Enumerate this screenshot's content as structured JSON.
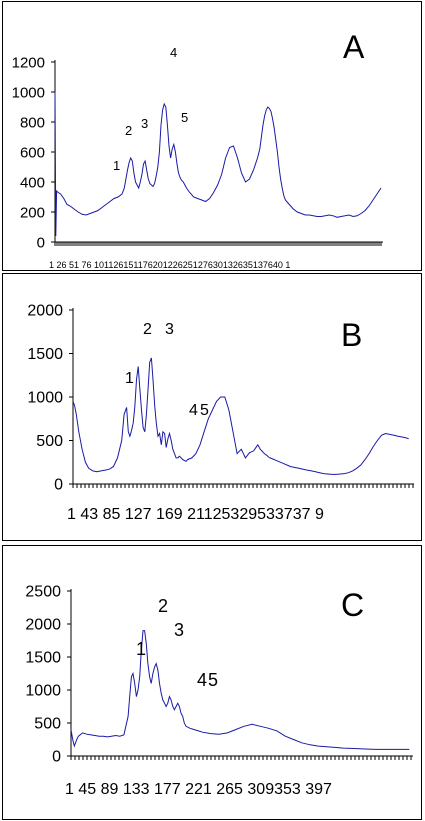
{
  "chart_data": [
    {
      "type": "line",
      "panel_label": "A",
      "ylim": [
        0,
        1200
      ],
      "y_ticks": [
        "0",
        "200",
        "400",
        "600",
        "800",
        "1000",
        "1200"
      ],
      "x_tick_labels": [
        "1",
        "26",
        "51",
        "76",
        "101",
        "126",
        "151",
        "176",
        "201",
        "226",
        "251",
        "276",
        "301",
        "326",
        "351",
        "376",
        "401"
      ],
      "x_tick_text": "1    26  51   76  10112615117620122625127630132635137640 1",
      "peak_labels": [
        "1",
        "2",
        "3",
        "4",
        "5"
      ],
      "series": [
        {
          "x": [
            1,
            2,
            3,
            5,
            8,
            12,
            16,
            20,
            25,
            30,
            35,
            40,
            45,
            50,
            55,
            60,
            65,
            70,
            75,
            80,
            85,
            88,
            90,
            92,
            94,
            96,
            98,
            100,
            102,
            104,
            106,
            108,
            110,
            112,
            114,
            116,
            118,
            120,
            122,
            124,
            126,
            128,
            130,
            132,
            134,
            136,
            138,
            140,
            142,
            144,
            146,
            148,
            150,
            152,
            154,
            156,
            158,
            160,
            162,
            164,
            166,
            170,
            175,
            180,
            185,
            190,
            195,
            200,
            205,
            210,
            215,
            220,
            225,
            230,
            235,
            240,
            245,
            250,
            255,
            258,
            260,
            262,
            264,
            266,
            268,
            270,
            272,
            274,
            276,
            278,
            280,
            282,
            284,
            286,
            288,
            290,
            295,
            300,
            305,
            310,
            315,
            320,
            325,
            330,
            335,
            340,
            345,
            350,
            355,
            360,
            365,
            370,
            375,
            380,
            385,
            390,
            395,
            400,
            405,
            410
          ],
          "values": [
            1000,
            40,
            340,
            330,
            320,
            290,
            250,
            240,
            220,
            200,
            185,
            180,
            190,
            200,
            210,
            230,
            250,
            270,
            290,
            300,
            320,
            360,
            420,
            480,
            530,
            560,
            540,
            460,
            400,
            380,
            360,
            400,
            450,
            520,
            540,
            480,
            420,
            390,
            380,
            370,
            390,
            440,
            500,
            600,
            780,
            880,
            920,
            900,
            780,
            640,
            560,
            620,
            650,
            600,
            520,
            460,
            430,
            410,
            400,
            380,
            360,
            330,
            300,
            290,
            280,
            270,
            290,
            330,
            380,
            450,
            560,
            630,
            640,
            560,
            460,
            400,
            420,
            480,
            560,
            620,
            700,
            780,
            840,
            880,
            900,
            890,
            870,
            820,
            760,
            680,
            600,
            500,
            420,
            360,
            310,
            280,
            250,
            220,
            200,
            190,
            180,
            180,
            175,
            170,
            170,
            175,
            180,
            175,
            165,
            170,
            175,
            180,
            170,
            175,
            190,
            210,
            240,
            280,
            320,
            360
          ]
        }
      ]
    },
    {
      "type": "line",
      "panel_label": "B",
      "ylim": [
        0,
        2000
      ],
      "y_ticks": [
        "0",
        "500",
        "1000",
        "1500",
        "2000"
      ],
      "x_tick_labels": [
        "1",
        "43",
        "85",
        "127",
        "169",
        "211",
        "253",
        "295",
        "337",
        "379"
      ],
      "x_tick_text": "1     43    85    127  169  21125329533737 9",
      "peak_labels": [
        "1",
        "2",
        "3",
        "4",
        "5"
      ],
      "series": [
        {
          "x": [
            1,
            3,
            5,
            8,
            12,
            16,
            20,
            25,
            30,
            35,
            40,
            45,
            50,
            55,
            60,
            63,
            66,
            68,
            70,
            72,
            74,
            76,
            78,
            80,
            82,
            84,
            86,
            88,
            90,
            92,
            94,
            96,
            98,
            100,
            102,
            104,
            106,
            108,
            110,
            112,
            114,
            116,
            118,
            120,
            122,
            124,
            126,
            128,
            130,
            132,
            134,
            136,
            138,
            140,
            145,
            150,
            155,
            160,
            165,
            170,
            175,
            180,
            185,
            190,
            195,
            200,
            205,
            210,
            215,
            220,
            225,
            228,
            230,
            232,
            234,
            236,
            238,
            240,
            245,
            250,
            255,
            260,
            265,
            270,
            275,
            280,
            285,
            290,
            295,
            300,
            305,
            310,
            315,
            320,
            325,
            330,
            335,
            340,
            345,
            350,
            355,
            360,
            365,
            370,
            375,
            380,
            385,
            390,
            395,
            400,
            405,
            408
          ],
          "values": [
            950,
            900,
            800,
            600,
            400,
            250,
            180,
            150,
            140,
            150,
            160,
            170,
            200,
            300,
            500,
            800,
            880,
            600,
            550,
            620,
            700,
            900,
            1200,
            1350,
            1100,
            850,
            650,
            600,
            800,
            1100,
            1400,
            1450,
            1200,
            900,
            700,
            550,
            580,
            450,
            600,
            580,
            420,
            520,
            580,
            500,
            400,
            350,
            300,
            300,
            320,
            300,
            280,
            270,
            260,
            280,
            300,
            350,
            450,
            600,
            750,
            850,
            950,
            1000,
            1000,
            850,
            600,
            350,
            400,
            300,
            360,
            380,
            450,
            400,
            380,
            360,
            340,
            330,
            310,
            300,
            280,
            260,
            240,
            220,
            200,
            190,
            180,
            170,
            160,
            150,
            140,
            130,
            120,
            115,
            110,
            110,
            115,
            120,
            130,
            150,
            180,
            220,
            280,
            350,
            430,
            500,
            560,
            580,
            570,
            560,
            550,
            540,
            530,
            520
          ]
        }
      ]
    },
    {
      "type": "line",
      "panel_label": "C",
      "ylim": [
        0,
        2500
      ],
      "y_ticks": [
        "0",
        "500",
        "1000",
        "1500",
        "2000",
        "2500"
      ],
      "x_tick_labels": [
        "1",
        "45",
        "89",
        "133",
        "177",
        "221",
        "265",
        "309",
        "353",
        "397"
      ],
      "x_tick_text": "1     45    89   133 177 221 265 309353 397",
      "peak_labels": [
        "1",
        "2",
        "3",
        "4",
        "5"
      ],
      "series": [
        {
          "x": [
            1,
            3,
            5,
            8,
            10,
            15,
            20,
            25,
            30,
            35,
            40,
            45,
            50,
            55,
            60,
            65,
            70,
            72,
            74,
            76,
            78,
            80,
            82,
            84,
            86,
            88,
            90,
            92,
            94,
            96,
            98,
            100,
            102,
            104,
            106,
            108,
            110,
            112,
            114,
            116,
            118,
            120,
            122,
            124,
            126,
            128,
            130,
            132,
            134,
            136,
            138,
            140,
            145,
            150,
            155,
            160,
            170,
            180,
            190,
            200,
            210,
            220,
            230,
            240,
            250,
            260,
            270,
            280,
            290,
            300,
            310,
            320,
            330,
            340,
            350,
            360,
            370,
            380,
            390,
            400,
            405,
            410
          ],
          "values": [
            400,
            250,
            150,
            250,
            300,
            350,
            330,
            320,
            310,
            300,
            300,
            290,
            300,
            310,
            300,
            320,
            600,
            900,
            1200,
            1250,
            1100,
            900,
            1000,
            1200,
            1600,
            1900,
            1900,
            1700,
            1400,
            1200,
            1100,
            1250,
            1350,
            1400,
            1300,
            1100,
            950,
            850,
            800,
            750,
            800,
            900,
            850,
            750,
            700,
            750,
            800,
            750,
            650,
            600,
            500,
            450,
            420,
            400,
            380,
            360,
            340,
            330,
            350,
            400,
            450,
            480,
            450,
            420,
            380,
            300,
            250,
            200,
            170,
            150,
            140,
            130,
            120,
            115,
            110,
            105,
            100,
            100,
            100,
            100,
            100,
            100
          ]
        }
      ]
    }
  ]
}
